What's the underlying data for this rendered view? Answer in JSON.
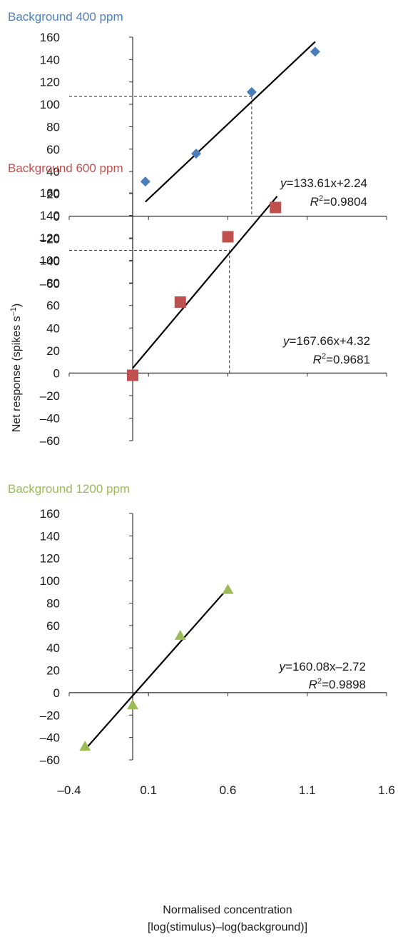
{
  "chart_data": [
    {
      "type": "scatter",
      "title": "Background 400 ppm",
      "title_color": "#4f81bd",
      "marker": "diamond",
      "marker_color": "#4a7ebb",
      "ylim": [
        -60,
        160
      ],
      "yticks": [
        "160",
        "140",
        "120",
        "100",
        "80",
        "60",
        "40",
        "20",
        "0",
        "–20",
        "–40",
        "–60"
      ],
      "points": [
        {
          "x": 0.08,
          "y": 31
        },
        {
          "x": 0.4,
          "y": 56
        },
        {
          "x": 0.75,
          "y": 111
        },
        {
          "x": 1.15,
          "y": 147
        }
      ],
      "fit": {
        "slope": 133.61,
        "intercept": 2.24,
        "x_range": [
          0.08,
          1.15
        ]
      },
      "reference": {
        "x": 0.75,
        "y": 107
      },
      "equation": {
        "y_part": "y",
        "formula": "=133.61x+2.24",
        "r_part": "R",
        "r_exp": "2",
        "r_value": "=0.9804"
      }
    },
    {
      "type": "scatter",
      "title": "Background 600 ppm",
      "title_color": "#c0504d",
      "marker": "square",
      "marker_color": "#c0504d",
      "ylim": [
        -60,
        160
      ],
      "yticks": [
        "160",
        "140",
        "120",
        "100",
        "80",
        "60",
        "40",
        "20",
        "0",
        "–20",
        "–40",
        "–60"
      ],
      "points": [
        {
          "x": 0.0,
          "y": -2
        },
        {
          "x": 0.3,
          "y": 63
        },
        {
          "x": 0.6,
          "y": 121
        },
        {
          "x": 0.9,
          "y": 147
        }
      ],
      "fit": {
        "slope": 167.66,
        "intercept": 4.32,
        "x_range": [
          0.0,
          0.91
        ]
      },
      "reference": {
        "x": 0.61,
        "y": 109
      },
      "equation": {
        "y_part": "y",
        "formula": "=167.66x+4.32",
        "r_part": "R",
        "r_exp": "2",
        "r_value": "=0.9681"
      }
    },
    {
      "type": "scatter",
      "title": "Background 1200 ppm",
      "title_color": "#9bbb59",
      "marker": "triangle",
      "marker_color": "#9bbb59",
      "ylim": [
        -60,
        160
      ],
      "yticks": [
        "160",
        "140",
        "120",
        "100",
        "80",
        "60",
        "40",
        "20",
        "0",
        "–20",
        "–40",
        "–60"
      ],
      "xticks": [
        "–0.4",
        "0.1",
        "0.6",
        "1.1",
        "1.6"
      ],
      "xtick_values": [
        -0.4,
        0.1,
        0.6,
        1.1,
        1.6
      ],
      "points": [
        {
          "x": -0.3,
          "y": -48
        },
        {
          "x": 0.0,
          "y": -11
        },
        {
          "x": 0.3,
          "y": 51
        },
        {
          "x": 0.6,
          "y": 92
        }
      ],
      "fit": {
        "slope": 160.08,
        "intercept": -2.72,
        "x_range": [
          -0.3,
          0.6
        ]
      },
      "equation": {
        "y_part": "y",
        "formula": "=160.08x–2.72",
        "r_part": "R",
        "r_exp": "2",
        "r_value": "=0.9898"
      }
    }
  ],
  "xlim": [
    -0.4,
    1.6
  ],
  "ylabel": "Net response (spikes s",
  "ylabel_sup": "–1",
  "ylabel_end": ")",
  "xlabel_line1": "Normalised concentration",
  "xlabel_line2": "[log(stimulus)–log(background)]"
}
